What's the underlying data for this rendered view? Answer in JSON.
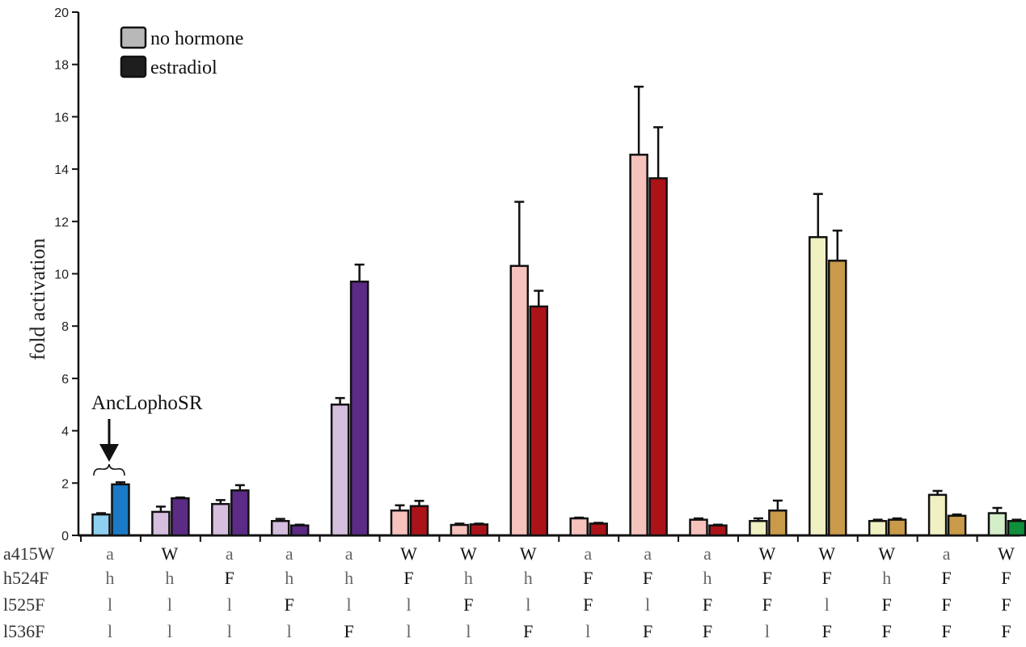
{
  "chart_data": {
    "type": "bar",
    "ylabel": "fold activation",
    "ylim": [
      0,
      20
    ],
    "yticks": [
      "0",
      "2",
      "4",
      "6",
      "8",
      "10",
      "12",
      "14",
      "16",
      "18",
      "20"
    ],
    "legend": [
      "no hormone",
      "estradiol"
    ],
    "legend_colors": [
      "#b8b8b8",
      "#1e1e1e"
    ],
    "legend_placement": "top-left",
    "annotation": {
      "text": "AncLophoSR",
      "group_index": 0
    },
    "series": [
      {
        "values": [
          0.8,
          0.9,
          1.2,
          0.55,
          5.0,
          0.95,
          0.4,
          10.3,
          0.65,
          14.55,
          0.6,
          0.55,
          11.4,
          0.55,
          1.55,
          0.85
        ],
        "errors": [
          0.05,
          0.2,
          0.15,
          0.08,
          0.25,
          0.2,
          0.05,
          2.45,
          0.03,
          2.6,
          0.05,
          0.1,
          1.65,
          0.05,
          0.15,
          0.2
        ],
        "colors": [
          "#8fd0f0",
          "#d6bedf",
          "#d6bedf",
          "#d6bedf",
          "#d6bedf",
          "#f6c3bc",
          "#f6c3bc",
          "#f6c3bc",
          "#f6c3bc",
          "#f6c3bc",
          "#f6c3bc",
          "#f1f0c3",
          "#f1f0c3",
          "#f1f0c3",
          "#f1f0c3",
          "#d4eec9"
        ]
      },
      {
        "values": [
          1.95,
          1.42,
          1.72,
          0.38,
          9.7,
          1.12,
          0.42,
          8.75,
          0.45,
          13.65,
          0.38,
          0.95,
          10.5,
          0.6,
          0.75,
          0.55
        ],
        "errors": [
          0.08,
          0.03,
          0.2,
          0.03,
          0.65,
          0.2,
          0.03,
          0.6,
          0.03,
          1.95,
          0.03,
          0.38,
          1.15,
          0.05,
          0.05,
          0.05
        ],
        "colors": [
          "#1a7ac7",
          "#5b2b85",
          "#5b2b85",
          "#5b2b85",
          "#5b2b85",
          "#ab1319",
          "#ab1319",
          "#ab1319",
          "#ab1319",
          "#ab1319",
          "#ab1319",
          "#c89a4a",
          "#c89a4a",
          "#c89a4a",
          "#c89a4a",
          "#0f8f3c"
        ]
      }
    ],
    "table": {
      "row_labels": [
        "a415W",
        "h524F",
        "l525F",
        "l536F"
      ],
      "rows": [
        [
          "a",
          "W",
          "a",
          "a",
          "a",
          "W",
          "W",
          "W",
          "a",
          "a",
          "a",
          "W",
          "W",
          "W",
          "a",
          "W"
        ],
        [
          "h",
          "h",
          "F",
          "h",
          "h",
          "F",
          "h",
          "h",
          "F",
          "F",
          "h",
          "F",
          "F",
          "h",
          "F",
          "F"
        ],
        [
          "l",
          "l",
          "l",
          "F",
          "l",
          "l",
          "F",
          "l",
          "F",
          "l",
          "F",
          "F",
          "l",
          "F",
          "F",
          "F"
        ],
        [
          "l",
          "l",
          "l",
          "l",
          "F",
          "l",
          "l",
          "F",
          "l",
          "F",
          "F",
          "l",
          "F",
          "F",
          "F",
          "F"
        ]
      ]
    }
  }
}
